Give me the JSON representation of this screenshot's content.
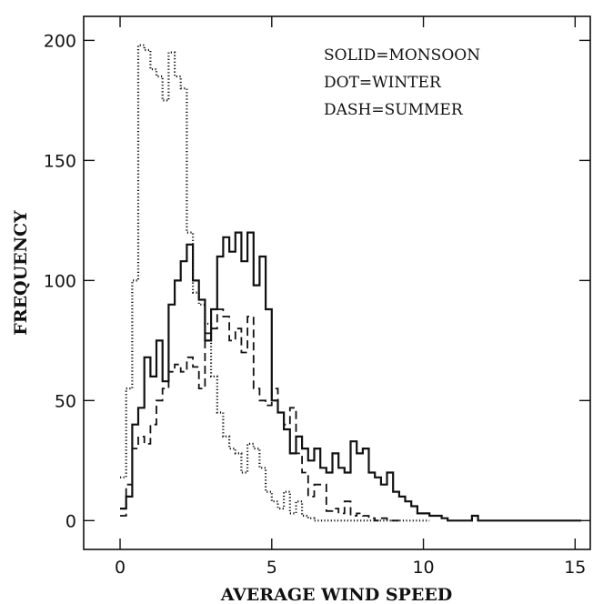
{
  "chart_data": {
    "type": "line",
    "title": "",
    "xlabel": "AVERAGE WIND SPEED",
    "ylabel": "FREQUENCY",
    "xlim": [
      -1.2,
      15.5
    ],
    "ylim": [
      -12,
      210
    ],
    "xticks": [
      0,
      5,
      10,
      15
    ],
    "yticks": [
      0,
      50,
      100,
      150,
      200
    ],
    "grid": false,
    "legend_position": "top-right",
    "legend": [
      "SOLID=MONSOON",
      "DOT=WINTER",
      "DASH=SUMMER"
    ],
    "bin_width": 0.2,
    "step_style": "histogram",
    "series": [
      {
        "name": "MONSOON",
        "line_style": "solid",
        "x": [
          0.0,
          0.2,
          0.4,
          0.6,
          0.8,
          1.0,
          1.2,
          1.4,
          1.6,
          1.8,
          2.0,
          2.2,
          2.4,
          2.6,
          2.8,
          3.0,
          3.2,
          3.4,
          3.6,
          3.8,
          4.0,
          4.2,
          4.4,
          4.6,
          4.8,
          5.0,
          5.2,
          5.4,
          5.6,
          5.8,
          6.0,
          6.2,
          6.4,
          6.6,
          6.8,
          7.0,
          7.2,
          7.4,
          7.6,
          7.8,
          8.0,
          8.2,
          8.4,
          8.6,
          8.8,
          9.0,
          9.2,
          9.4,
          9.6,
          9.8,
          10.0,
          10.2,
          10.4,
          10.6,
          10.8,
          11.0,
          11.2,
          11.4,
          11.6,
          11.8,
          12.0,
          12.2,
          12.4,
          12.6,
          12.8,
          13.0,
          13.2,
          13.4,
          13.6,
          13.8,
          14.0,
          14.2,
          14.4,
          14.6,
          14.8,
          15.0
        ],
        "y": [
          5,
          10,
          40,
          47,
          68,
          60,
          75,
          58,
          90,
          100,
          108,
          115,
          100,
          92,
          75,
          88,
          110,
          118,
          112,
          120,
          108,
          120,
          98,
          110,
          88,
          50,
          45,
          38,
          28,
          35,
          30,
          25,
          30,
          22,
          20,
          28,
          22,
          20,
          33,
          28,
          30,
          20,
          18,
          15,
          20,
          12,
          10,
          8,
          6,
          3,
          3,
          2,
          2,
          1,
          0,
          0,
          0,
          0,
          2,
          0,
          0,
          0,
          0,
          0,
          0,
          0,
          0,
          0,
          0,
          0,
          0,
          0,
          0,
          0,
          0,
          0
        ]
      },
      {
        "name": "WINTER",
        "line_style": "dotted",
        "x": [
          0.0,
          0.2,
          0.4,
          0.6,
          0.8,
          1.0,
          1.2,
          1.4,
          1.6,
          1.8,
          2.0,
          2.2,
          2.4,
          2.6,
          2.8,
          3.0,
          3.2,
          3.4,
          3.6,
          3.8,
          4.0,
          4.2,
          4.4,
          4.6,
          4.8,
          5.0,
          5.2,
          5.4,
          5.6,
          5.8,
          6.0,
          6.2,
          6.4,
          6.6,
          6.8,
          7.0,
          7.2,
          7.4,
          7.6,
          7.8,
          8.0,
          8.2,
          8.4,
          8.6,
          8.8,
          9.0,
          9.2,
          9.4,
          9.6,
          9.8,
          10.0
        ],
        "y": [
          18,
          55,
          100,
          198,
          196,
          188,
          185,
          175,
          195,
          185,
          180,
          120,
          95,
          90,
          82,
          60,
          45,
          35,
          30,
          28,
          20,
          32,
          30,
          22,
          12,
          8,
          5,
          12,
          3,
          8,
          2,
          1,
          0,
          0,
          0,
          0,
          0,
          0,
          0,
          0,
          0,
          0,
          0,
          0,
          0,
          0,
          0,
          0,
          0,
          0,
          0
        ]
      },
      {
        "name": "SUMMER",
        "line_style": "dashed",
        "x": [
          0.0,
          0.2,
          0.4,
          0.6,
          0.8,
          1.0,
          1.2,
          1.4,
          1.6,
          1.8,
          2.0,
          2.2,
          2.4,
          2.6,
          2.8,
          3.0,
          3.2,
          3.4,
          3.6,
          3.8,
          4.0,
          4.2,
          4.4,
          4.6,
          4.8,
          5.0,
          5.2,
          5.4,
          5.6,
          5.8,
          6.0,
          6.2,
          6.4,
          6.6,
          6.8,
          7.0,
          7.2,
          7.4,
          7.6,
          7.8,
          8.0,
          8.2,
          8.4,
          8.6,
          8.8,
          9.0
        ],
        "y": [
          2,
          15,
          30,
          35,
          32,
          40,
          50,
          55,
          62,
          65,
          62,
          68,
          64,
          55,
          78,
          80,
          88,
          85,
          75,
          80,
          70,
          85,
          55,
          50,
          48,
          55,
          45,
          40,
          47,
          28,
          20,
          10,
          15,
          15,
          4,
          5,
          3,
          8,
          2,
          3,
          2,
          1,
          0,
          1,
          0,
          0
        ]
      }
    ]
  }
}
